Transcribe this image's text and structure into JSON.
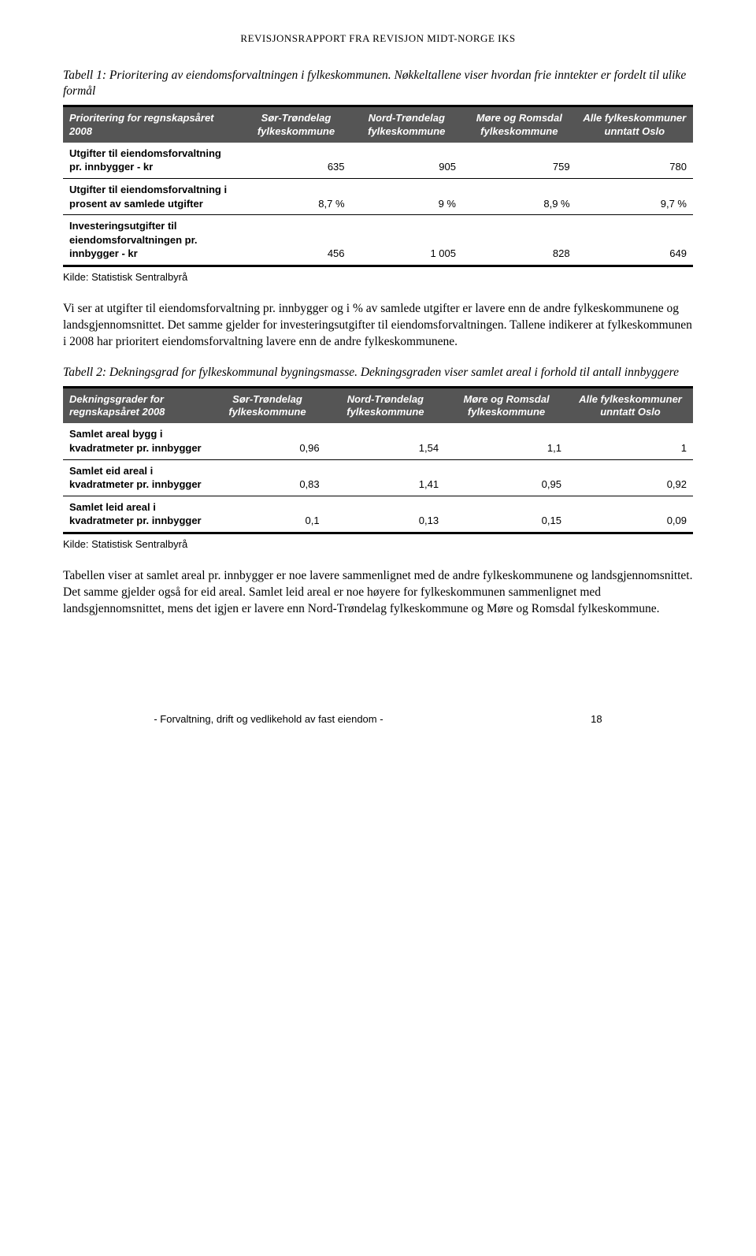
{
  "header": "REVISJONSRAPPORT FRA REVISJON MIDT-NORGE IKS",
  "table1": {
    "caption": "Tabell 1: Prioritering av eiendomsforvaltningen i fylkeskommunen. Nøkkeltallene viser hvordan frie inntekter er fordelt til ulike formål",
    "columns": [
      "Prioritering for regnskapsåret 2008",
      "Sør-Trøndelag fylkeskommune",
      "Nord-Trøndelag fylkeskommune",
      "Møre og Romsdal fylkeskommune",
      "Alle fylkeskommuner unntatt Oslo"
    ],
    "rows": [
      {
        "label": "Utgifter til eiendomsforvaltning pr. innbygger - kr",
        "v": [
          "635",
          "905",
          "759",
          "780"
        ]
      },
      {
        "label": "Utgifter til eiendomsforvaltning i prosent av samlede utgifter",
        "v": [
          "8,7 %",
          "9 %",
          "8,9 %",
          "9,7 %"
        ]
      },
      {
        "label": "Investeringsutgifter til eiendomsforvaltningen pr. innbygger - kr",
        "v": [
          "456",
          "1 005",
          "828",
          "649"
        ]
      }
    ],
    "source": "Kilde: Statistisk Sentralbyrå"
  },
  "para1": "Vi ser at utgifter til eiendomsforvaltning pr. innbygger og i % av samlede utgifter er lavere enn de andre fylkeskommunene og landsgjennomsnittet. Det samme gjelder for investeringsutgifter til eiendomsforvaltningen. Tallene indikerer at fylkeskommunen i 2008 har prioritert eiendomsforvaltning lavere enn de andre fylkeskommunene.",
  "table2": {
    "caption": "Tabell 2: Dekningsgrad for fylkeskommunal bygningsmasse. Dekningsgraden viser samlet areal i forhold til antall innbyggere",
    "columns": [
      "Dekningsgrader for regnskapsåret 2008",
      "Sør-Trøndelag fylkeskommune",
      "Nord-Trøndelag fylkeskommune",
      "Møre og Romsdal fylkeskommune",
      "Alle fylkeskommuner unntatt Oslo"
    ],
    "rows": [
      {
        "label": "Samlet areal bygg i kvadratmeter pr. innbygger",
        "v": [
          "0,96",
          "1,54",
          "1,1",
          "1"
        ]
      },
      {
        "label": "Samlet eid areal i kvadratmeter pr. innbygger",
        "v": [
          "0,83",
          "1,41",
          "0,95",
          "0,92"
        ]
      },
      {
        "label": "Samlet leid areal i kvadratmeter pr. innbygger",
        "v": [
          "0,1",
          "0,13",
          "0,15",
          "0,09"
        ]
      }
    ],
    "source": "Kilde: Statistisk Sentralbyrå"
  },
  "para2": "Tabellen viser at samlet areal pr. innbygger er noe lavere sammenlignet med de andre fylkeskommunene og landsgjennomsnittet. Det samme gjelder også for eid areal. Samlet leid areal er noe høyere for fylkeskommunen sammenlignet med landsgjennomsnittet, mens det igjen er lavere enn Nord-Trøndelag fylkeskommune og Møre og Romsdal fylkeskommune.",
  "footer": {
    "text": "- Forvaltning, drift og vedlikehold av fast eiendom -",
    "page": "18"
  }
}
